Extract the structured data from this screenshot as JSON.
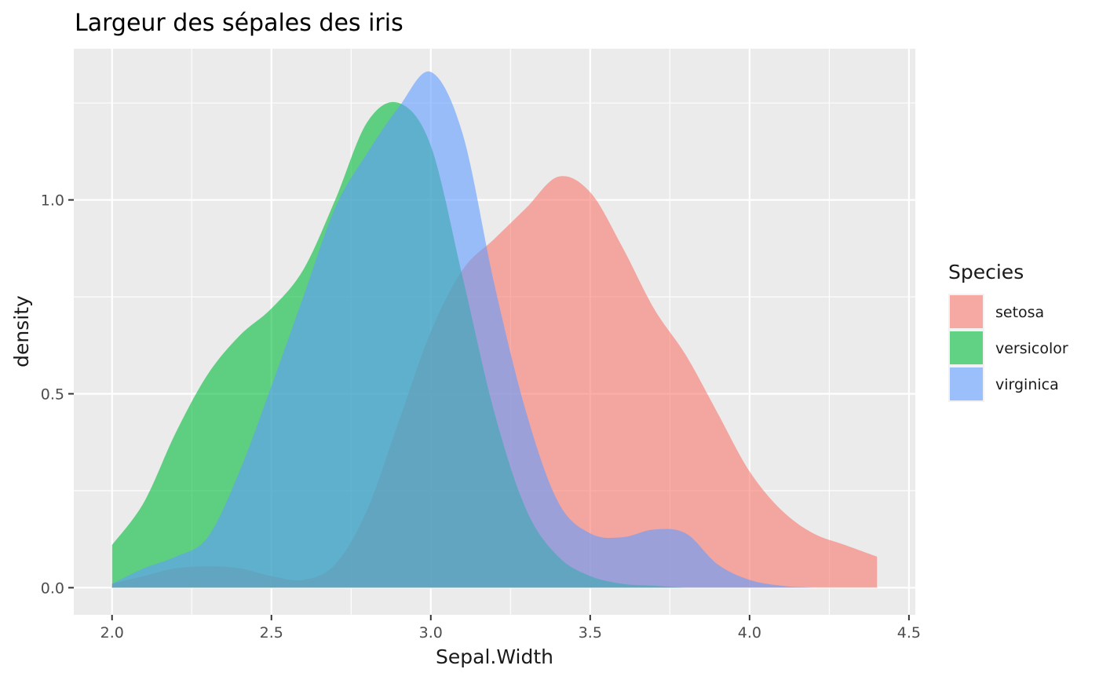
{
  "chart_data": {
    "type": "area",
    "subtype": "density",
    "title": "Largeur des sépales des iris",
    "xlabel": "Sepal.Width",
    "ylabel": "density",
    "xlim": [
      1.88,
      4.52
    ],
    "ylim": [
      -0.07,
      1.39
    ],
    "x_ticks": [
      2.0,
      2.5,
      3.0,
      3.5,
      4.0,
      4.5
    ],
    "x_tick_labels": [
      "2.0",
      "2.5",
      "3.0",
      "3.5",
      "4.0",
      "4.5"
    ],
    "y_ticks": [
      0.0,
      0.5,
      1.0
    ],
    "y_tick_labels": [
      "0.0",
      "0.5",
      "1.0"
    ],
    "grid": true,
    "legend": {
      "title": "Species",
      "position": "right"
    },
    "series": [
      {
        "name": "setosa",
        "color": "#F8766D",
        "x": [
          2.0,
          2.1,
          2.2,
          2.3,
          2.4,
          2.5,
          2.6,
          2.7,
          2.8,
          2.9,
          3.0,
          3.1,
          3.2,
          3.3,
          3.4,
          3.5,
          3.6,
          3.7,
          3.8,
          3.9,
          4.0,
          4.1,
          4.2,
          4.3,
          4.4
        ],
        "y": [
          0.01,
          0.03,
          0.05,
          0.055,
          0.05,
          0.03,
          0.02,
          0.06,
          0.2,
          0.43,
          0.66,
          0.82,
          0.9,
          0.98,
          1.06,
          1.02,
          0.88,
          0.72,
          0.6,
          0.45,
          0.3,
          0.2,
          0.14,
          0.11,
          0.08
        ]
      },
      {
        "name": "versicolor",
        "color": "#00BA38",
        "x": [
          2.0,
          2.1,
          2.2,
          2.3,
          2.4,
          2.5,
          2.6,
          2.7,
          2.8,
          2.9,
          3.0,
          3.1,
          3.2,
          3.3,
          3.4,
          3.5,
          3.6,
          3.7,
          3.8
        ],
        "y": [
          0.11,
          0.22,
          0.4,
          0.55,
          0.65,
          0.72,
          0.82,
          1.0,
          1.2,
          1.25,
          1.14,
          0.8,
          0.45,
          0.2,
          0.08,
          0.03,
          0.01,
          0.005,
          0.0
        ]
      },
      {
        "name": "virginica",
        "color": "#619CFF",
        "x": [
          2.0,
          2.1,
          2.2,
          2.3,
          2.4,
          2.5,
          2.6,
          2.7,
          2.8,
          2.9,
          3.0,
          3.1,
          3.2,
          3.3,
          3.4,
          3.5,
          3.6,
          3.7,
          3.8,
          3.9,
          4.0,
          4.1,
          4.2
        ],
        "y": [
          0.01,
          0.05,
          0.08,
          0.13,
          0.3,
          0.52,
          0.75,
          0.98,
          1.12,
          1.24,
          1.33,
          1.17,
          0.78,
          0.45,
          0.22,
          0.14,
          0.13,
          0.15,
          0.14,
          0.06,
          0.02,
          0.005,
          0.0
        ]
      }
    ]
  },
  "render_order": [
    "setosa",
    "versicolor",
    "virginica"
  ],
  "fill_opacity": 0.6,
  "colors": {
    "panel_background": "#EBEBEB",
    "grid_major": "#FFFFFF",
    "tick_mark": "#333333"
  }
}
